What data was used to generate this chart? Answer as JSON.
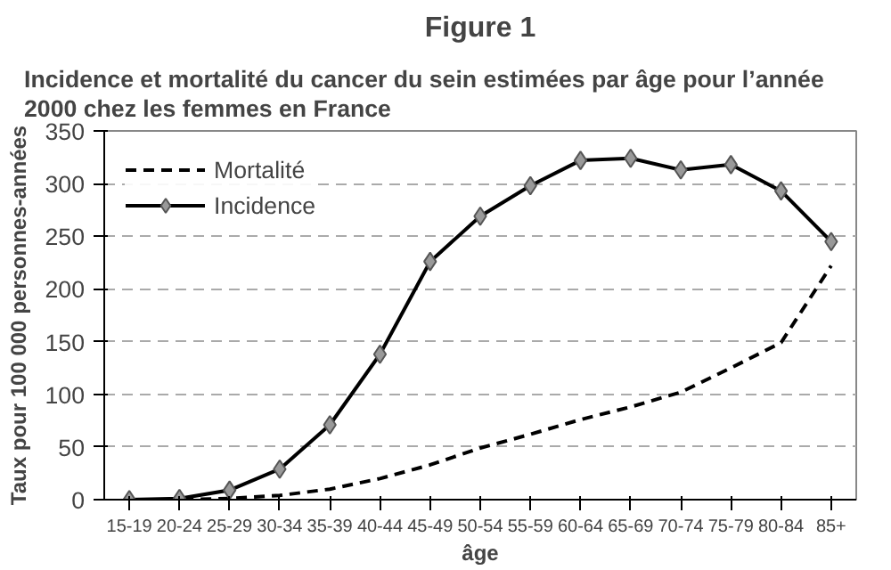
{
  "chart_data": {
    "type": "line",
    "title": "Figure 1",
    "subtitle": "Incidence et mortalité du cancer du sein estimées par âge pour l’année 2000 chez les femmes en France",
    "xlabel": "âge",
    "ylabel": "Taux pour 100 000 personnes-années",
    "categories": [
      "15-19",
      "20-24",
      "25-29",
      "30-34",
      "35-39",
      "40-44",
      "45-49",
      "50-54",
      "55-59",
      "60-64",
      "65-69",
      "70-74",
      "75-79",
      "80-84",
      "85+"
    ],
    "series": [
      {
        "name": "Mortalité",
        "color": "#000000",
        "line_style": "dashed",
        "marker": "none",
        "values": [
          0,
          0,
          1,
          4,
          10,
          20,
          33,
          49,
          62,
          76,
          88,
          102,
          125,
          149,
          222
        ]
      },
      {
        "name": "Incidence",
        "color": "#000000",
        "line_style": "solid",
        "marker": "diamond",
        "values": [
          0,
          1,
          9,
          29,
          71,
          138,
          226,
          269,
          298,
          322,
          324,
          313,
          318,
          293,
          245
        ]
      }
    ],
    "ylim": [
      0,
      350
    ],
    "yticks": [
      0,
      50,
      100,
      150,
      200,
      250,
      300,
      350
    ],
    "grid": "y",
    "legend": "top left"
  }
}
